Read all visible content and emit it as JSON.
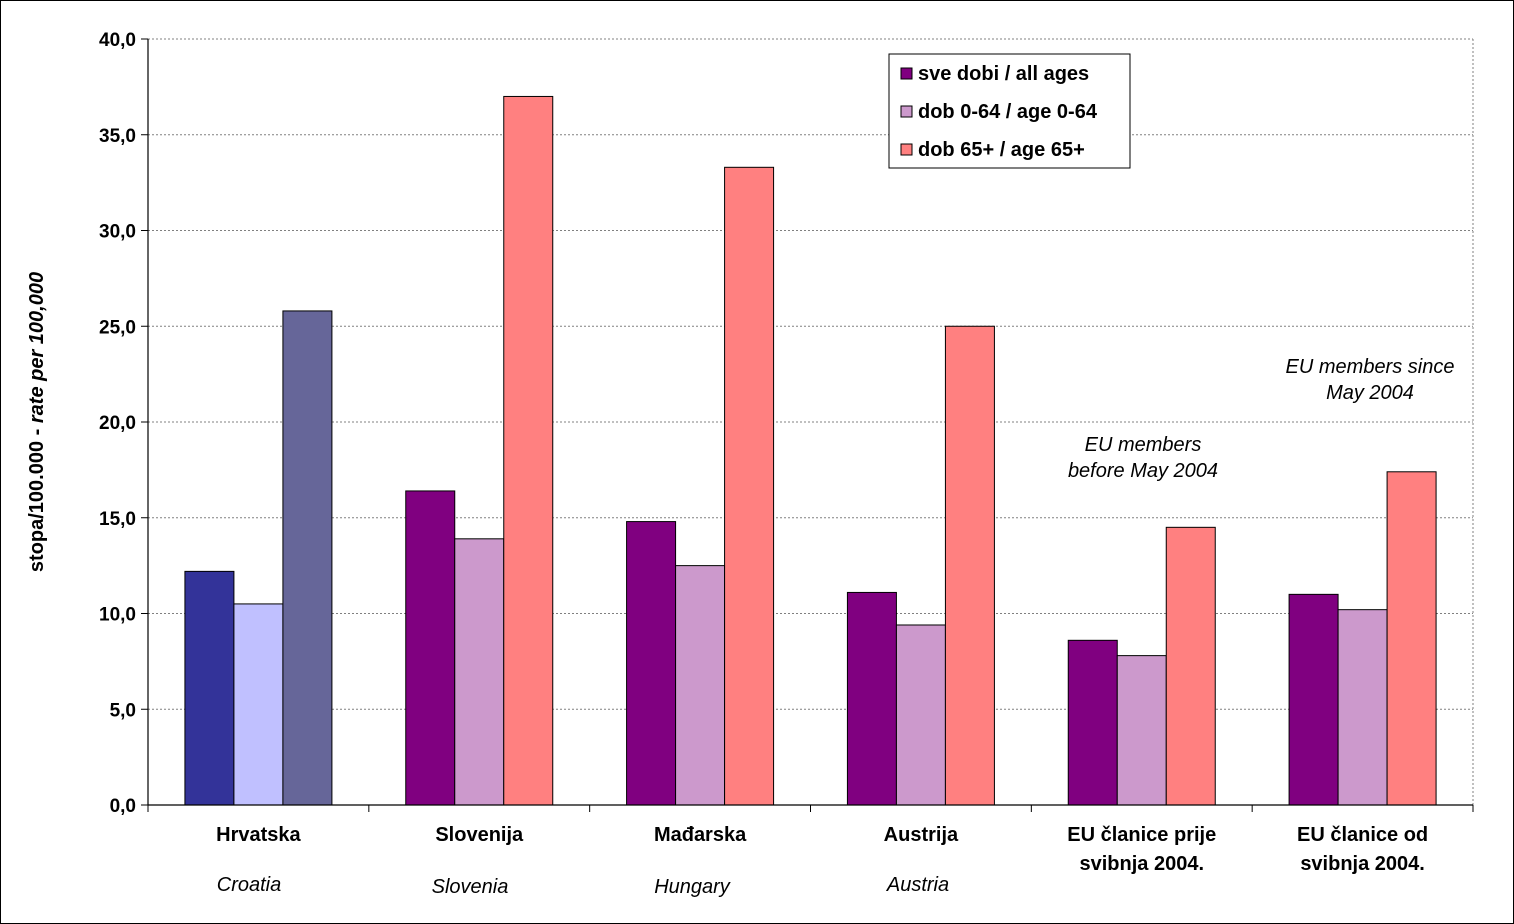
{
  "chart_data": {
    "type": "bar",
    "categories": [
      [
        "Hrvatska"
      ],
      [
        "Slovenija"
      ],
      [
        "Mađarska"
      ],
      [
        "Austrija"
      ],
      [
        "EU članice prije",
        "svibnja 2004."
      ],
      [
        "EU članice od",
        "svibnja 2004."
      ]
    ],
    "category_subtitles": [
      "Croatia",
      "Slovenia",
      "Hungary",
      "Austria",
      "",
      ""
    ],
    "series": [
      {
        "name": "sve dobi / all ages",
        "color": "#800080",
        "values": [
          12.2,
          16.4,
          14.8,
          11.1,
          8.6,
          11.0
        ]
      },
      {
        "name": "dob 0-64 / age 0-64",
        "color": "#CC99CC",
        "values": [
          10.5,
          13.9,
          12.5,
          9.4,
          7.8,
          10.2
        ]
      },
      {
        "name": "dob 65+ / age 65+",
        "color": "#FF8080",
        "values": [
          25.8,
          37.0,
          33.3,
          25.0,
          14.5,
          17.4
        ]
      }
    ],
    "croatia_series_colors": [
      "#333399",
      "#C0C0FF",
      "#666699"
    ],
    "ylabel_regular": "stopa/100.000 - ",
    "ylabel_italic": "rate per 100,000",
    "xlabel": "",
    "ylim": [
      0,
      40
    ],
    "ytick_step": 5,
    "ytick_labels": [
      "0,0",
      "5,0",
      "10,0",
      "15,0",
      "20,0",
      "25,0",
      "30,0",
      "35,0",
      "40,0"
    ],
    "grid": true,
    "legend_position": "top-right",
    "annotations": [
      {
        "lines": [
          "EU members",
          "before May 2004"
        ]
      },
      {
        "lines": [
          "EU members since",
          "May 2004"
        ]
      }
    ]
  }
}
